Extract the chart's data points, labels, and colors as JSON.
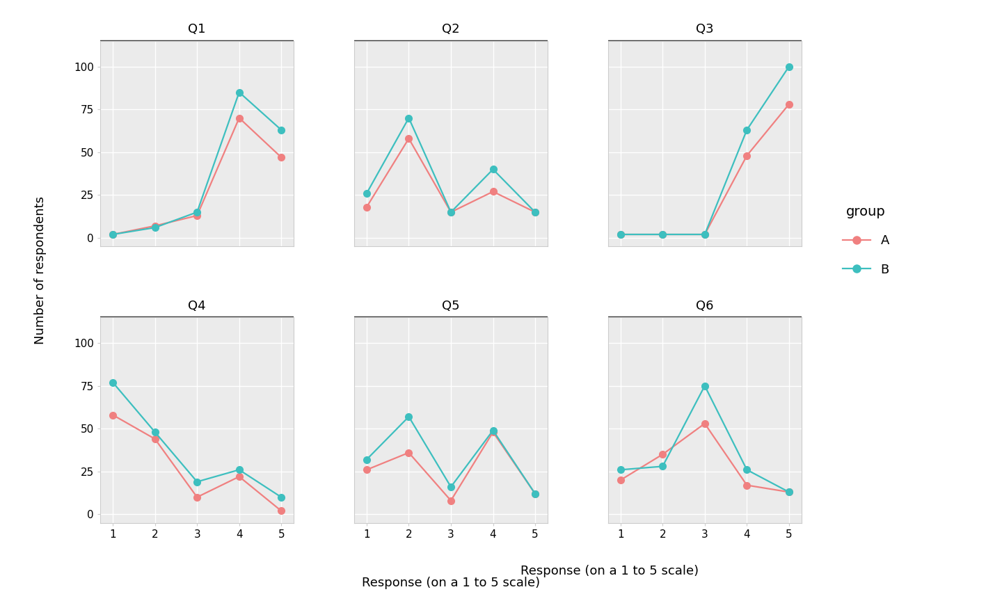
{
  "panels": [
    "Q1",
    "Q2",
    "Q3",
    "Q4",
    "Q5",
    "Q6"
  ],
  "x": [
    1,
    2,
    3,
    4,
    5
  ],
  "series": {
    "A": {
      "color": "#F08080",
      "Q1": [
        2,
        7,
        13,
        70,
        47
      ],
      "Q2": [
        18,
        58,
        15,
        27,
        15
      ],
      "Q3": [
        2,
        2,
        2,
        48,
        78
      ],
      "Q4": [
        58,
        44,
        10,
        22,
        2
      ],
      "Q5": [
        26,
        36,
        8,
        48,
        12
      ],
      "Q6": [
        20,
        35,
        53,
        17,
        13
      ]
    },
    "B": {
      "color": "#3DBFBF",
      "Q1": [
        2,
        6,
        15,
        85,
        63
      ],
      "Q2": [
        26,
        70,
        15,
        40,
        15
      ],
      "Q3": [
        2,
        2,
        2,
        63,
        100
      ],
      "Q4": [
        77,
        48,
        19,
        26,
        10
      ],
      "Q5": [
        32,
        57,
        16,
        49,
        12
      ],
      "Q6": [
        26,
        28,
        75,
        26,
        13
      ]
    }
  },
  "ylabel": "Number of respondents",
  "xlabel": "Response (on a 1 to 5 scale)",
  "legend_title": "group",
  "ylim": [
    -5,
    115
  ],
  "yticks": [
    0,
    25,
    50,
    75,
    100
  ],
  "background_color": "#FFFFFF",
  "panel_bg": "#EBEBEB",
  "strip_bg": "#D3D3D3",
  "strip_line_color": "#333333",
  "grid_color": "#FFFFFF",
  "spine_color": "#CCCCCC",
  "marker_size": 7,
  "line_width": 1.6,
  "title_fontsize": 13,
  "label_fontsize": 13,
  "tick_fontsize": 11,
  "legend_fontsize": 13,
  "legend_title_fontsize": 14
}
